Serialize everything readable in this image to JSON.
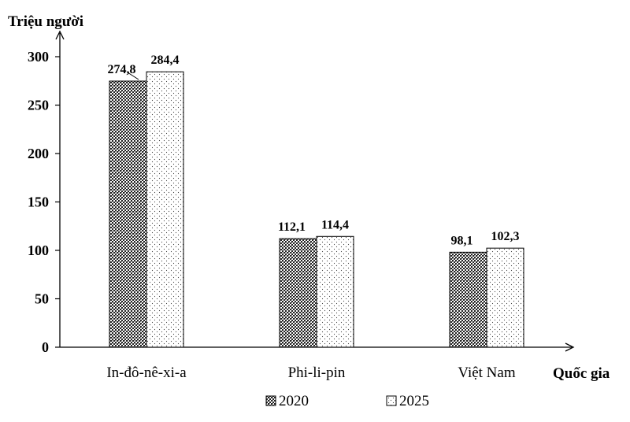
{
  "chart_data": {
    "type": "bar",
    "ylabel": "Triệu người",
    "xlabel": "Quốc gia",
    "categories": [
      "In-đô-nê-xi-a",
      "Phi-li-pin",
      "Việt Nam"
    ],
    "series": [
      {
        "name": "2020",
        "values": [
          274.8,
          112.1,
          98.1
        ],
        "value_labels": [
          "274,8",
          "112,1",
          "98,1"
        ],
        "pattern": "crosshatch-dense"
      },
      {
        "name": "2025",
        "values": [
          284.4,
          114.4,
          102.3
        ],
        "value_labels": [
          "284,4",
          "114,4",
          "102,3"
        ],
        "pattern": "sparse-dots"
      }
    ],
    "ylim": [
      0,
      300
    ],
    "yticks": [
      0,
      50,
      100,
      150,
      200,
      250,
      300
    ],
    "grid": false,
    "legend_position": "bottom-center"
  }
}
